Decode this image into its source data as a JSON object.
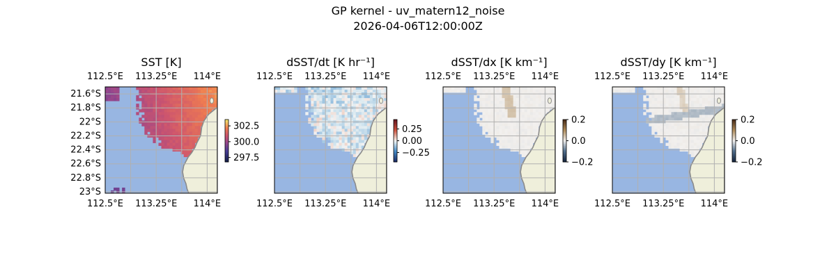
{
  "figure": {
    "title_line1": "GP kernel - uv_matern12_noise",
    "title_line2": "2026-04-06T12:00:00Z"
  },
  "colors": {
    "ocean": "#98b6e2",
    "land": "#efefdb",
    "coast": "#8a8a8a",
    "grid": "#b0b0b0"
  },
  "chart_data": [
    {
      "type": "heatmap",
      "title": "SST [K]",
      "colormap": "thermal",
      "grid": true,
      "x_ticks": [
        "112.5°E",
        "113.25°E",
        "114°E"
      ],
      "x_tick_values": [
        112.5,
        113.25,
        114.0
      ],
      "y_ticks": [
        "21.6°S",
        "21.8°S",
        "22°S",
        "22.2°S",
        "22.4°S",
        "22.6°S",
        "22.8°S",
        "23°S"
      ],
      "y_tick_values": [
        -21.6,
        -21.8,
        -22.0,
        -22.2,
        -22.4,
        -22.6,
        -22.8,
        -23.0
      ],
      "xlim": [
        112.5,
        114.15
      ],
      "ylim": [
        -23.02,
        -21.5
      ],
      "show_y_labels": true,
      "colorbar": {
        "ticks": [
          "302.5",
          "300.0",
          "297.5"
        ],
        "tick_values": [
          302.5,
          300.0,
          297.5
        ],
        "range": [
          296.8,
          303.5
        ]
      }
    },
    {
      "type": "heatmap",
      "title": "dSST/dt [K hr⁻¹]",
      "colormap": "balance",
      "grid": true,
      "x_ticks": [
        "112.5°E",
        "113.25°E",
        "114°E"
      ],
      "x_tick_values": [
        112.5,
        113.25,
        114.0
      ],
      "xlim": [
        112.5,
        114.15
      ],
      "ylim": [
        -23.02,
        -21.5
      ],
      "show_y_labels": false,
      "colorbar": {
        "ticks": [
          "0.25",
          "0.00",
          "−0.25"
        ],
        "tick_values": [
          0.25,
          0.0,
          -0.25
        ],
        "range": [
          -0.45,
          0.45
        ]
      }
    },
    {
      "type": "heatmap",
      "title": "dSST/dx [K km⁻¹]",
      "colormap": "diff",
      "grid": true,
      "x_ticks": [
        "112.5°E",
        "113.25°E",
        "114°E"
      ],
      "x_tick_values": [
        112.5,
        113.25,
        114.0
      ],
      "xlim": [
        112.5,
        114.15
      ],
      "ylim": [
        -23.02,
        -21.5
      ],
      "show_y_labels": false,
      "colorbar": {
        "ticks": [
          "0.2",
          "0.0",
          "−0.2"
        ],
        "tick_values": [
          0.2,
          0.0,
          -0.2
        ],
        "range": [
          -0.2,
          0.2
        ]
      }
    },
    {
      "type": "heatmap",
      "title": "dSST/dy [K km⁻¹]",
      "colormap": "diff",
      "grid": true,
      "x_ticks": [
        "112.5°E",
        "113.25°E",
        "114°E"
      ],
      "x_tick_values": [
        112.5,
        113.25,
        114.0
      ],
      "xlim": [
        112.5,
        114.15
      ],
      "ylim": [
        -23.02,
        -21.5
      ],
      "show_y_labels": false,
      "colorbar": {
        "ticks": [
          "0.2",
          "0.0",
          "−0.2"
        ],
        "tick_values": [
          0.2,
          0.0,
          -0.2
        ],
        "range": [
          -0.2,
          0.2
        ]
      }
    }
  ]
}
